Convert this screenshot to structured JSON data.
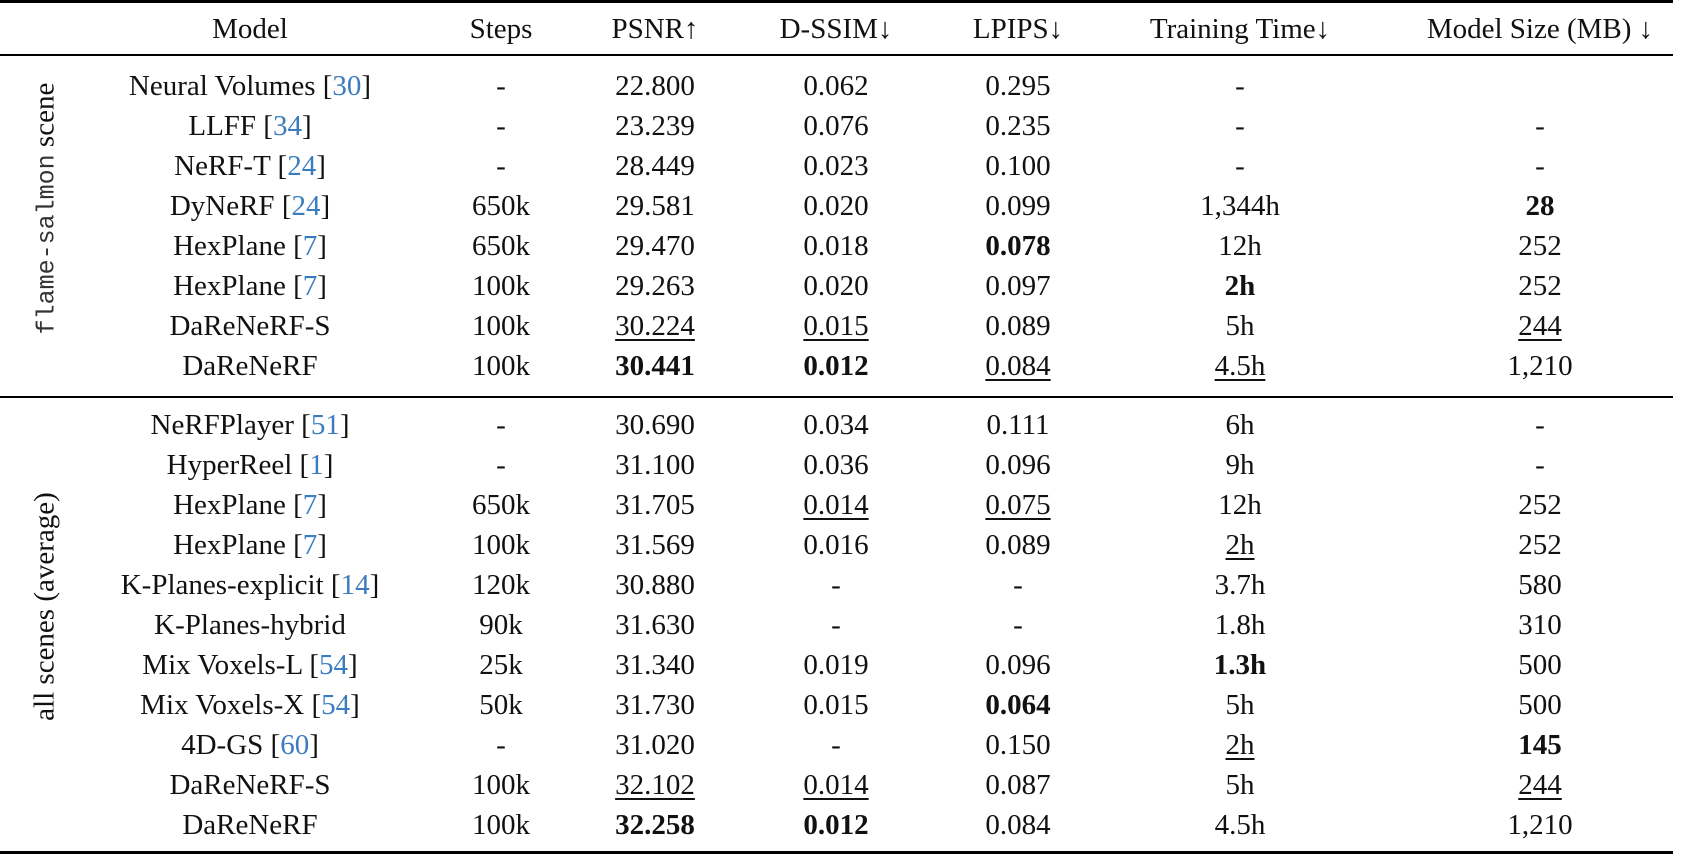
{
  "table": {
    "columns": [
      "Model",
      "Steps",
      "PSNR↑",
      "D-SSIM↓",
      "LPIPS↓",
      "Training Time↓",
      "Model Size (MB) ↓"
    ],
    "groups": [
      {
        "label_mono": "flame-salmon",
        "label_text": " scene",
        "rows": [
          {
            "model": "Neural Volumes",
            "ref": "30",
            "steps": "-",
            "psnr": "22.800",
            "dssim": "0.062",
            "lpips": "0.295",
            "time": "-",
            "size": ""
          },
          {
            "model": "LLFF",
            "ref": "34",
            "steps": "-",
            "psnr": "23.239",
            "dssim": "0.076",
            "lpips": "0.235",
            "time": "-",
            "size": "-"
          },
          {
            "model": "NeRF-T",
            "ref": "24",
            "steps": "-",
            "psnr": "28.449",
            "dssim": "0.023",
            "lpips": "0.100",
            "time": "-",
            "size": "-"
          },
          {
            "model": "DyNeRF",
            "ref": "24",
            "steps": "650k",
            "psnr": "29.581",
            "dssim": "0.020",
            "lpips": "0.099",
            "time": "1,344h",
            "size": "28",
            "bold": [
              "size"
            ]
          },
          {
            "model": "HexPlane",
            "ref": "7",
            "steps": "650k",
            "psnr": "29.470",
            "dssim": "0.018",
            "lpips": "0.078",
            "time": "12h",
            "size": "252",
            "bold": [
              "lpips"
            ]
          },
          {
            "model": "HexPlane",
            "ref": "7",
            "steps": "100k",
            "psnr": "29.263",
            "dssim": "0.020",
            "lpips": "0.097",
            "time": "2h",
            "size": "252",
            "bold": [
              "time"
            ]
          },
          {
            "model": "DaReNeRF-S",
            "ref": "",
            "steps": "100k",
            "psnr": "30.224",
            "dssim": "0.015",
            "lpips": "0.089",
            "time": "5h",
            "size": "244",
            "underline": [
              "psnr",
              "dssim",
              "size"
            ]
          },
          {
            "model": "DaReNeRF",
            "ref": "",
            "steps": "100k",
            "psnr": "30.441",
            "dssim": "0.012",
            "lpips": "0.084",
            "time": "4.5h",
            "size": "1,210",
            "bold": [
              "psnr",
              "dssim"
            ],
            "underline": [
              "lpips",
              "time"
            ]
          }
        ]
      },
      {
        "label_mono": "",
        "label_text": "all scenes (average)",
        "rows": [
          {
            "model": "NeRFPlayer",
            "ref": "51",
            "steps": "-",
            "psnr": "30.690",
            "dssim": "0.034",
            "lpips": "0.111",
            "time": "6h",
            "size": "-"
          },
          {
            "model": "HyperReel",
            "ref": "1",
            "steps": "-",
            "psnr": "31.100",
            "dssim": "0.036",
            "lpips": "0.096",
            "time": "9h",
            "size": "-"
          },
          {
            "model": "HexPlane",
            "ref": "7",
            "steps": "650k",
            "psnr": "31.705",
            "dssim": "0.014",
            "lpips": "0.075",
            "time": "12h",
            "size": "252",
            "underline": [
              "dssim",
              "lpips"
            ]
          },
          {
            "model": "HexPlane",
            "ref": "7",
            "steps": "100k",
            "psnr": "31.569",
            "dssim": "0.016",
            "lpips": "0.089",
            "time": "2h",
            "size": "252",
            "underline": [
              "time"
            ]
          },
          {
            "model": "K-Planes-explicit",
            "ref": "14",
            "steps": "120k",
            "psnr": "30.880",
            "dssim": "-",
            "lpips": "-",
            "time": "3.7h",
            "size": "580"
          },
          {
            "model": "K-Planes-hybrid",
            "ref": "",
            "steps": "90k",
            "psnr": "31.630",
            "dssim": "-",
            "lpips": "-",
            "time": "1.8h",
            "size": "310"
          },
          {
            "model": "Mix Voxels-L",
            "ref": "54",
            "steps": "25k",
            "psnr": "31.340",
            "dssim": "0.019",
            "lpips": "0.096",
            "time": "1.3h",
            "size": "500",
            "bold": [
              "time"
            ]
          },
          {
            "model": "Mix Voxels-X",
            "ref": "54",
            "steps": "50k",
            "psnr": "31.730",
            "dssim": "0.015",
            "lpips": "0.064",
            "time": "5h",
            "size": "500",
            "bold": [
              "lpips"
            ]
          },
          {
            "model": "4D-GS",
            "ref": "60",
            "steps": "-",
            "psnr": "31.020",
            "dssim": "-",
            "lpips": "0.150",
            "time": "2h",
            "size": "145",
            "bold": [
              "size"
            ],
            "underline": [
              "time"
            ]
          },
          {
            "model": "DaReNeRF-S",
            "ref": "",
            "steps": "100k",
            "psnr": "32.102",
            "dssim": "0.014",
            "lpips": "0.087",
            "time": "5h",
            "size": "244",
            "underline": [
              "psnr",
              "dssim",
              "size"
            ]
          },
          {
            "model": "DaReNeRF",
            "ref": "",
            "steps": "100k",
            "psnr": "32.258",
            "dssim": "0.012",
            "lpips": "0.084",
            "time": "4.5h",
            "size": "1,210",
            "bold": [
              "psnr",
              "dssim"
            ]
          }
        ]
      }
    ],
    "colors": {
      "ref_link": "#3b7bbf",
      "text": "#111111",
      "rule": "#000000"
    }
  }
}
